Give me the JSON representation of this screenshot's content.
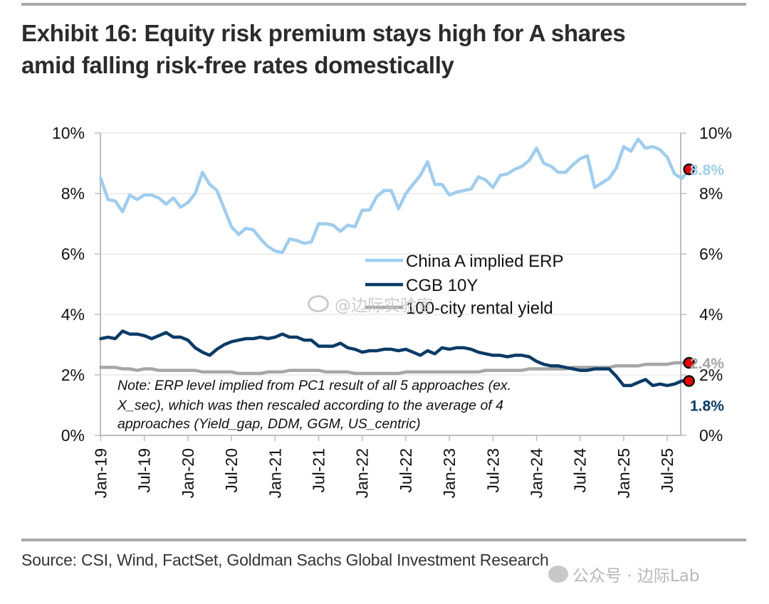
{
  "header": {
    "title_line1": "Exhibit 16: Equity risk premium stays high for A shares",
    "title_line2": "amid falling risk-free rates domestically"
  },
  "footer": {
    "source": "Source: CSI, Wind, FactSet, Goldman Sachs Global Investment Research"
  },
  "watermarks": {
    "mid": "@边际实验室",
    "bottom": "公众号 · 边际Lab"
  },
  "chart_data": {
    "type": "line",
    "title": "Exhibit 16: Equity risk premium stays high for A shares amid falling risk-free rates domestically",
    "xlabel": "",
    "ylabel": "",
    "ylim": [
      0,
      10
    ],
    "grid": true,
    "legend_position": "center",
    "y_ticks_left": [
      "0%",
      "2%",
      "4%",
      "6%",
      "8%",
      "10%"
    ],
    "y_ticks_right": [
      "0%",
      "2%",
      "4%",
      "6%",
      "8%",
      "10%"
    ],
    "x_tick_labels": [
      "Jan-19",
      "Jul-19",
      "Jan-20",
      "Jul-20",
      "Jan-21",
      "Jul-21",
      "Jan-22",
      "Jul-22",
      "Jan-23",
      "Jul-23",
      "Jan-24",
      "Jul-24",
      "Jan-25",
      "Jul-25"
    ],
    "x_start": "Jan-19",
    "frequency": "monthly",
    "colors": {
      "erp": "#9fcdee",
      "cgb": "#0b3a66",
      "rental": "#a6a6a6",
      "marker": "#ee0000",
      "grid": "#e8e8e8",
      "axis": "#bdbdbd"
    },
    "series": [
      {
        "name": "China A implied ERP",
        "key": "erp",
        "end_label": "8.8%",
        "values": [
          8.5,
          7.8,
          7.75,
          7.4,
          7.95,
          7.8,
          7.95,
          7.95,
          7.85,
          7.65,
          7.85,
          7.55,
          7.7,
          8.0,
          8.7,
          8.3,
          8.1,
          7.5,
          6.9,
          6.65,
          6.85,
          6.8,
          6.5,
          6.25,
          6.1,
          6.05,
          6.5,
          6.45,
          6.35,
          6.4,
          7.0,
          7.0,
          6.95,
          6.75,
          6.95,
          6.9,
          7.45,
          7.45,
          7.9,
          8.1,
          8.1,
          7.5,
          8.0,
          8.3,
          8.6,
          9.05,
          8.3,
          8.3,
          7.95,
          8.05,
          8.1,
          8.15,
          8.55,
          8.45,
          8.2,
          8.6,
          8.65,
          8.8,
          8.9,
          9.1,
          9.5,
          9.0,
          8.9,
          8.7,
          8.7,
          8.95,
          9.15,
          9.25,
          8.2,
          8.35,
          8.5,
          8.85,
          9.55,
          9.4,
          9.8,
          9.5,
          9.55,
          9.45,
          9.2,
          8.65,
          8.5,
          8.8
        ]
      },
      {
        "name": "CGB 10Y",
        "key": "cgb",
        "end_label": "1.8%",
        "values": [
          3.2,
          3.25,
          3.2,
          3.45,
          3.35,
          3.35,
          3.3,
          3.2,
          3.3,
          3.4,
          3.25,
          3.25,
          3.15,
          2.9,
          2.75,
          2.65,
          2.85,
          3.0,
          3.1,
          3.15,
          3.2,
          3.2,
          3.25,
          3.2,
          3.25,
          3.35,
          3.25,
          3.25,
          3.15,
          3.15,
          2.95,
          2.95,
          2.95,
          3.05,
          2.9,
          2.85,
          2.75,
          2.8,
          2.8,
          2.85,
          2.85,
          2.8,
          2.85,
          2.75,
          2.65,
          2.8,
          2.7,
          2.9,
          2.85,
          2.9,
          2.9,
          2.85,
          2.75,
          2.7,
          2.65,
          2.65,
          2.6,
          2.65,
          2.65,
          2.6,
          2.45,
          2.35,
          2.3,
          2.3,
          2.25,
          2.2,
          2.15,
          2.15,
          2.2,
          2.2,
          2.2,
          1.95,
          1.65,
          1.65,
          1.75,
          1.85,
          1.65,
          1.7,
          1.65,
          1.7,
          1.8,
          1.8
        ]
      },
      {
        "name": "100-city rental yield",
        "key": "rental",
        "end_label": "2.4%",
        "values": [
          2.25,
          2.25,
          2.25,
          2.2,
          2.2,
          2.15,
          2.2,
          2.2,
          2.15,
          2.15,
          2.15,
          2.15,
          2.15,
          2.15,
          2.1,
          2.1,
          2.1,
          2.1,
          2.1,
          2.05,
          2.05,
          2.05,
          2.05,
          2.1,
          2.1,
          2.1,
          2.15,
          2.15,
          2.15,
          2.15,
          2.15,
          2.1,
          2.1,
          2.1,
          2.1,
          2.05,
          2.05,
          2.05,
          2.05,
          2.05,
          2.05,
          2.05,
          2.1,
          2.1,
          2.1,
          2.1,
          2.1,
          2.1,
          2.1,
          2.1,
          2.1,
          2.1,
          2.1,
          2.15,
          2.15,
          2.15,
          2.15,
          2.15,
          2.15,
          2.2,
          2.2,
          2.2,
          2.2,
          2.2,
          2.2,
          2.25,
          2.25,
          2.25,
          2.25,
          2.25,
          2.25,
          2.3,
          2.3,
          2.3,
          2.3,
          2.35,
          2.35,
          2.35,
          2.35,
          2.4,
          2.4,
          2.4
        ]
      }
    ],
    "legend": [
      {
        "label": "China A implied ERP",
        "key": "erp"
      },
      {
        "label": "CGB 10Y",
        "key": "cgb"
      },
      {
        "label": "100-city rental yield",
        "key": "rental"
      }
    ],
    "annotation_note": [
      "Note: ERP level implied from PC1 result of all 5 approaches (ex.",
      "X_sec), which was then rescaled according to the average of 4",
      "approaches (Yield_gap, DDM, GGM, US_centric)"
    ]
  }
}
